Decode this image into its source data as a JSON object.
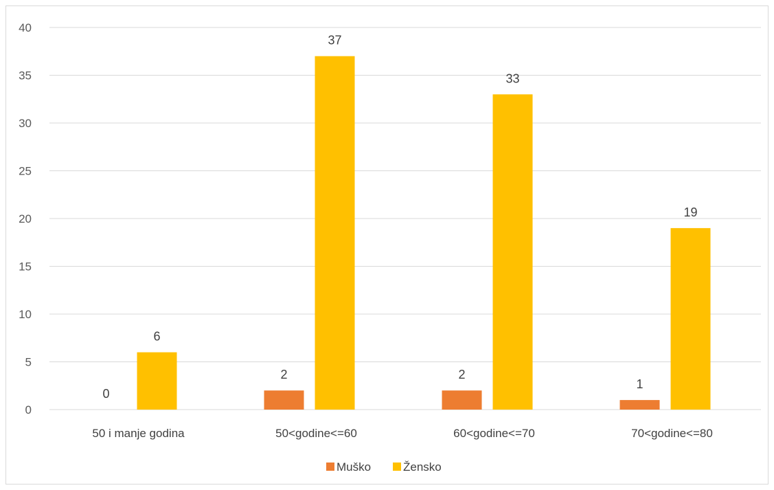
{
  "chart_data": {
    "type": "bar",
    "title": "",
    "xlabel": "",
    "ylabel": "",
    "categories": [
      "50 i manje godina",
      "50<godine<=60",
      "60<godine<=70",
      "70<godine<=80"
    ],
    "series": [
      {
        "name": "Muško",
        "color": "#ED7D31",
        "values": [
          0,
          2,
          2,
          1
        ]
      },
      {
        "name": "Žensko",
        "color": "#FFC000",
        "values": [
          6,
          37,
          33,
          19
        ]
      }
    ],
    "ylim": [
      0,
      40
    ],
    "yticks": [
      0,
      5,
      10,
      15,
      20,
      25,
      30,
      35,
      40
    ],
    "grid": true,
    "data_labels": true,
    "legend_position": "bottom",
    "gridline_color": "#d9d9d9",
    "axis_color": "#d9d9d9"
  }
}
